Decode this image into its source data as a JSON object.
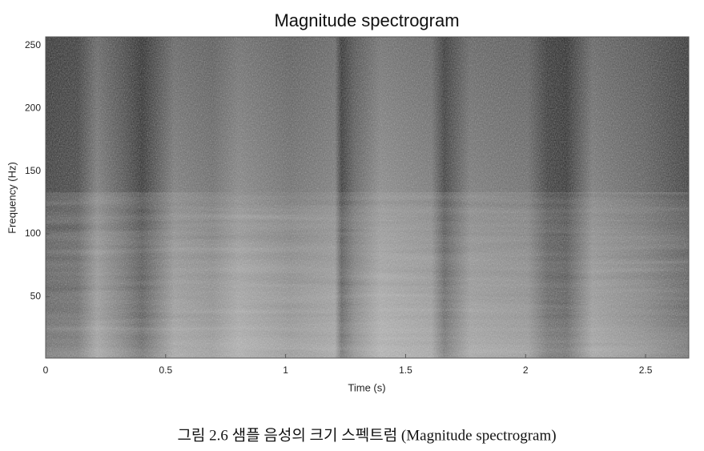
{
  "chart_data": {
    "type": "spectrogram",
    "title": "Magnitude spectrogram",
    "x_label": "Time (s)",
    "y_label": "Frequency (Hz)",
    "xlim": [
      0,
      2.68
    ],
    "xticks": [
      0,
      0.5,
      1,
      1.5,
      2,
      2.5
    ],
    "ylim": [
      1,
      257
    ],
    "yticks": [
      50,
      100,
      150,
      200,
      250
    ],
    "colormap": "gray"
  },
  "caption": "그림 2.6 샘플 음성의 크기 스펙트럼 (Magnitude spectrogram)"
}
